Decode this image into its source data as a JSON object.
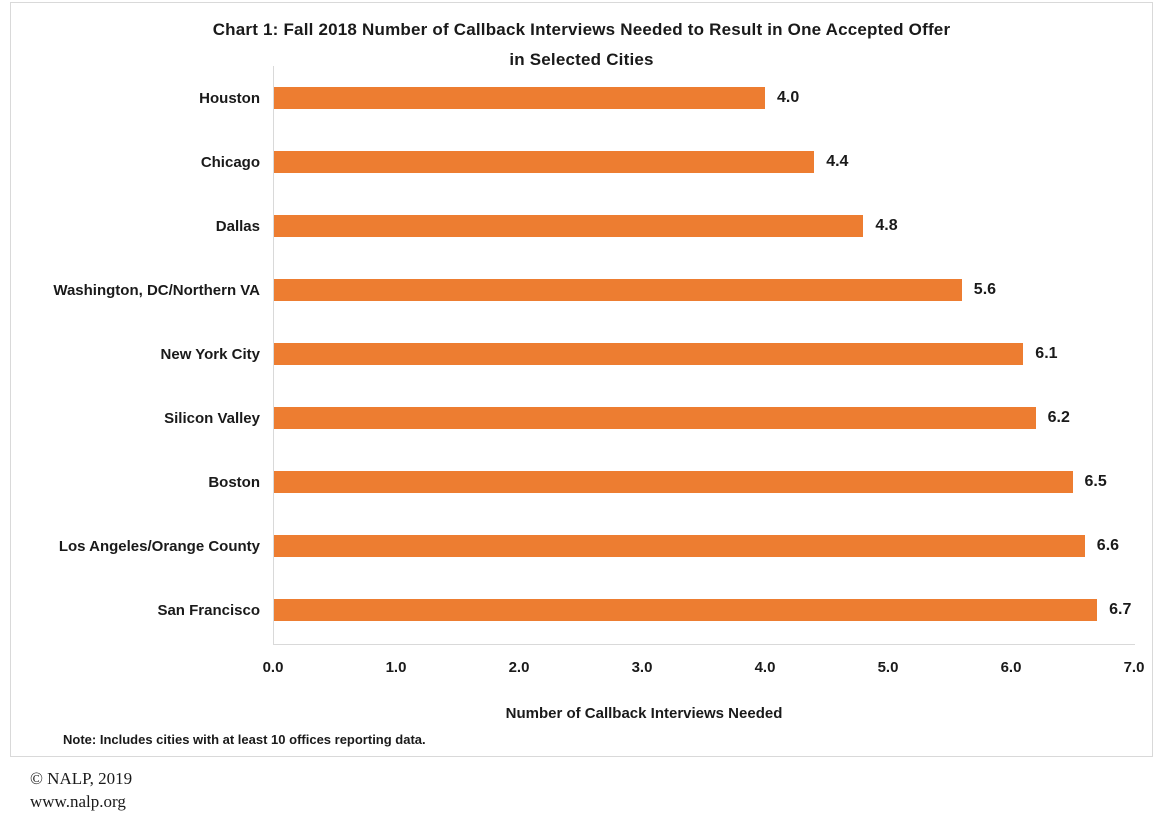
{
  "chart_data": {
    "type": "bar",
    "orientation": "horizontal",
    "title_line1": "Chart 1: Fall 2018 Number of Callback Interviews Needed to Result in One Accepted Offer",
    "title_line2": "in Selected Cities",
    "categories": [
      "Houston",
      "Chicago",
      "Dallas",
      "Washington, DC/Northern VA",
      "New York City",
      "Silicon Valley",
      "Boston",
      "Los Angeles/Orange County",
      "San Francisco"
    ],
    "values": [
      4.0,
      4.4,
      4.8,
      5.6,
      6.1,
      6.2,
      6.5,
      6.6,
      6.7
    ],
    "value_labels": [
      "4.0",
      "4.4",
      "4.8",
      "5.6",
      "6.1",
      "6.2",
      "6.5",
      "6.6",
      "6.7"
    ],
    "xlabel": "Number of Callback Interviews Needed",
    "x_ticks": [
      "0.0",
      "1.0",
      "2.0",
      "3.0",
      "4.0",
      "5.0",
      "6.0",
      "7.0"
    ],
    "xlim": [
      0,
      7
    ],
    "grid": false,
    "legend": "none",
    "bar_color": "#ED7D31",
    "axis_color": "#D9D9D9",
    "text_color": "#1A1A1A"
  },
  "note": "Note: Includes cities with at least 10 offices reporting data.",
  "footer": {
    "copyright": "© NALP, 2019",
    "website": "www.nalp.org"
  }
}
